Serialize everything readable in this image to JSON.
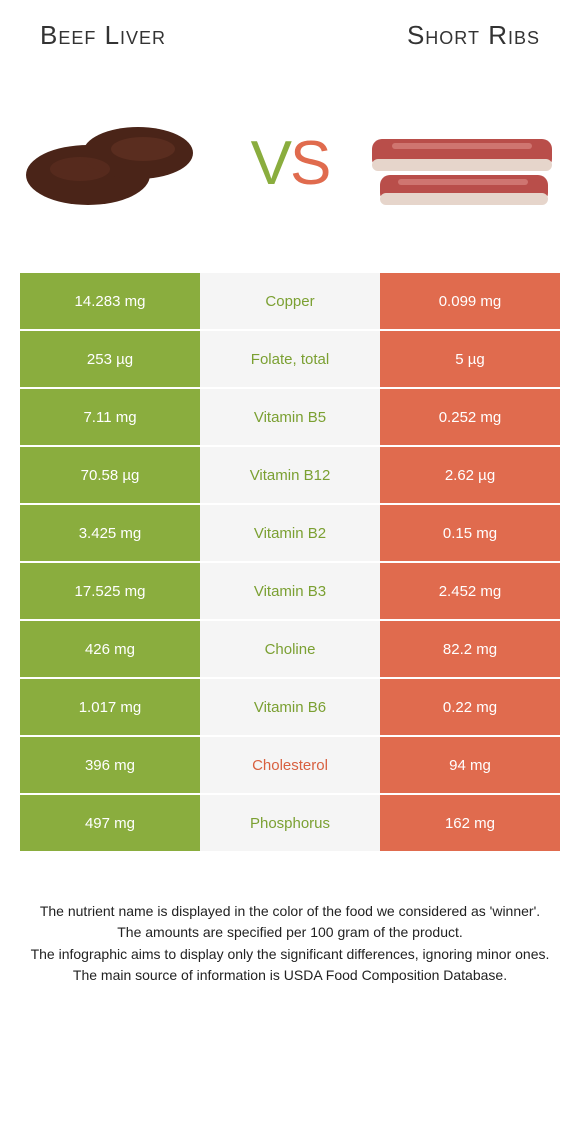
{
  "header": {
    "left_title": "Beef Liver",
    "right_title": "Short Ribs",
    "vs_v": "V",
    "vs_s": "S"
  },
  "colors": {
    "left_bg": "#8aad3e",
    "right_bg": "#e06b4e",
    "mid_bg": "#f5f5f5",
    "left_winner_text": "#7ba032",
    "right_winner_text": "#d8603f",
    "white": "#ffffff",
    "liver_fill": "#4a2418",
    "liver_highlight": "#6a3525",
    "ribs_meat": "#b94e4a",
    "ribs_fat": "#e6d5cb",
    "ribs_marble": "#d88680"
  },
  "table": {
    "rows": [
      {
        "left": "14.283 mg",
        "label": "Copper",
        "right": "0.099 mg",
        "winner": "left"
      },
      {
        "left": "253 µg",
        "label": "Folate, total",
        "right": "5 µg",
        "winner": "left"
      },
      {
        "left": "7.11 mg",
        "label": "Vitamin B5",
        "right": "0.252 mg",
        "winner": "left"
      },
      {
        "left": "70.58 µg",
        "label": "Vitamin B12",
        "right": "2.62 µg",
        "winner": "left"
      },
      {
        "left": "3.425 mg",
        "label": "Vitamin B2",
        "right": "0.15 mg",
        "winner": "left"
      },
      {
        "left": "17.525 mg",
        "label": "Vitamin B3",
        "right": "2.452 mg",
        "winner": "left"
      },
      {
        "left": "426 mg",
        "label": "Choline",
        "right": "82.2 mg",
        "winner": "left"
      },
      {
        "left": "1.017 mg",
        "label": "Vitamin B6",
        "right": "0.22 mg",
        "winner": "left"
      },
      {
        "left": "396 mg",
        "label": "Cholesterol",
        "right": "94 mg",
        "winner": "right"
      },
      {
        "left": "497 mg",
        "label": "Phosphorus",
        "right": "162 mg",
        "winner": "left"
      }
    ]
  },
  "footer": {
    "line1": "The nutrient name is displayed in the color of the food we considered as 'winner'.",
    "line2": "The amounts are specified per 100 gram of the product.",
    "line3": "The infographic aims to display only the significant differences, ignoring minor ones.",
    "line4": "The main source of information is USDA Food Composition Database."
  }
}
